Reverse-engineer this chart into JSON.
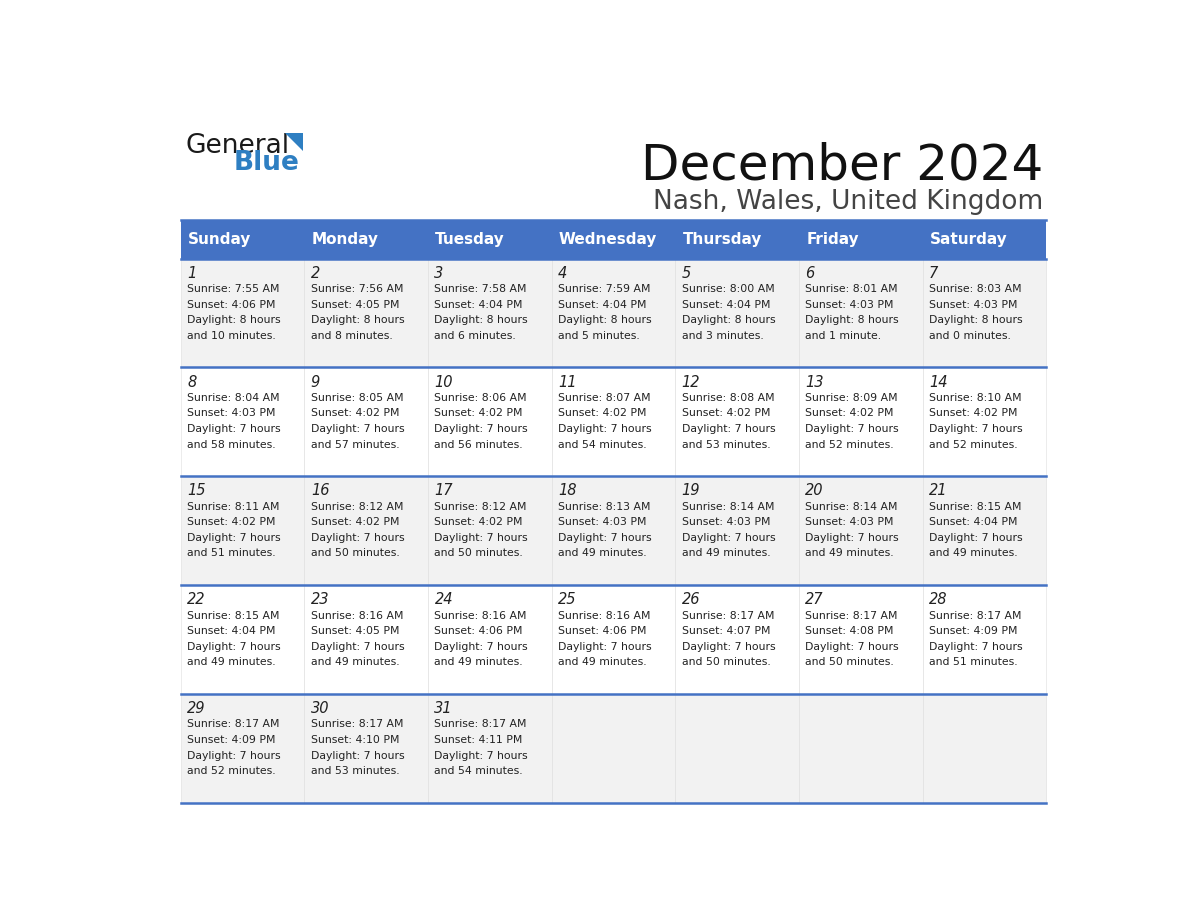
{
  "title": "December 2024",
  "subtitle": "Nash, Wales, United Kingdom",
  "header_color": "#4472C4",
  "header_text_color": "#FFFFFF",
  "cell_bg_even": "#F2F2F2",
  "cell_bg_odd": "#FFFFFF",
  "text_color": "#222222",
  "days_of_week": [
    "Sunday",
    "Monday",
    "Tuesday",
    "Wednesday",
    "Thursday",
    "Friday",
    "Saturday"
  ],
  "weeks": [
    [
      {
        "day": 1,
        "sunrise": "7:55 AM",
        "sunset": "4:06 PM",
        "daylight": "8 hours and 10 minutes."
      },
      {
        "day": 2,
        "sunrise": "7:56 AM",
        "sunset": "4:05 PM",
        "daylight": "8 hours and 8 minutes."
      },
      {
        "day": 3,
        "sunrise": "7:58 AM",
        "sunset": "4:04 PM",
        "daylight": "8 hours and 6 minutes."
      },
      {
        "day": 4,
        "sunrise": "7:59 AM",
        "sunset": "4:04 PM",
        "daylight": "8 hours and 5 minutes."
      },
      {
        "day": 5,
        "sunrise": "8:00 AM",
        "sunset": "4:04 PM",
        "daylight": "8 hours and 3 minutes."
      },
      {
        "day": 6,
        "sunrise": "8:01 AM",
        "sunset": "4:03 PM",
        "daylight": "8 hours and 1 minute."
      },
      {
        "day": 7,
        "sunrise": "8:03 AM",
        "sunset": "4:03 PM",
        "daylight": "8 hours and 0 minutes."
      }
    ],
    [
      {
        "day": 8,
        "sunrise": "8:04 AM",
        "sunset": "4:03 PM",
        "daylight": "7 hours and 58 minutes."
      },
      {
        "day": 9,
        "sunrise": "8:05 AM",
        "sunset": "4:02 PM",
        "daylight": "7 hours and 57 minutes."
      },
      {
        "day": 10,
        "sunrise": "8:06 AM",
        "sunset": "4:02 PM",
        "daylight": "7 hours and 56 minutes."
      },
      {
        "day": 11,
        "sunrise": "8:07 AM",
        "sunset": "4:02 PM",
        "daylight": "7 hours and 54 minutes."
      },
      {
        "day": 12,
        "sunrise": "8:08 AM",
        "sunset": "4:02 PM",
        "daylight": "7 hours and 53 minutes."
      },
      {
        "day": 13,
        "sunrise": "8:09 AM",
        "sunset": "4:02 PM",
        "daylight": "7 hours and 52 minutes."
      },
      {
        "day": 14,
        "sunrise": "8:10 AM",
        "sunset": "4:02 PM",
        "daylight": "7 hours and 52 minutes."
      }
    ],
    [
      {
        "day": 15,
        "sunrise": "8:11 AM",
        "sunset": "4:02 PM",
        "daylight": "7 hours and 51 minutes."
      },
      {
        "day": 16,
        "sunrise": "8:12 AM",
        "sunset": "4:02 PM",
        "daylight": "7 hours and 50 minutes."
      },
      {
        "day": 17,
        "sunrise": "8:12 AM",
        "sunset": "4:02 PM",
        "daylight": "7 hours and 50 minutes."
      },
      {
        "day": 18,
        "sunrise": "8:13 AM",
        "sunset": "4:03 PM",
        "daylight": "7 hours and 49 minutes."
      },
      {
        "day": 19,
        "sunrise": "8:14 AM",
        "sunset": "4:03 PM",
        "daylight": "7 hours and 49 minutes."
      },
      {
        "day": 20,
        "sunrise": "8:14 AM",
        "sunset": "4:03 PM",
        "daylight": "7 hours and 49 minutes."
      },
      {
        "day": 21,
        "sunrise": "8:15 AM",
        "sunset": "4:04 PM",
        "daylight": "7 hours and 49 minutes."
      }
    ],
    [
      {
        "day": 22,
        "sunrise": "8:15 AM",
        "sunset": "4:04 PM",
        "daylight": "7 hours and 49 minutes."
      },
      {
        "day": 23,
        "sunrise": "8:16 AM",
        "sunset": "4:05 PM",
        "daylight": "7 hours and 49 minutes."
      },
      {
        "day": 24,
        "sunrise": "8:16 AM",
        "sunset": "4:06 PM",
        "daylight": "7 hours and 49 minutes."
      },
      {
        "day": 25,
        "sunrise": "8:16 AM",
        "sunset": "4:06 PM",
        "daylight": "7 hours and 49 minutes."
      },
      {
        "day": 26,
        "sunrise": "8:17 AM",
        "sunset": "4:07 PM",
        "daylight": "7 hours and 50 minutes."
      },
      {
        "day": 27,
        "sunrise": "8:17 AM",
        "sunset": "4:08 PM",
        "daylight": "7 hours and 50 minutes."
      },
      {
        "day": 28,
        "sunrise": "8:17 AM",
        "sunset": "4:09 PM",
        "daylight": "7 hours and 51 minutes."
      }
    ],
    [
      {
        "day": 29,
        "sunrise": "8:17 AM",
        "sunset": "4:09 PM",
        "daylight": "7 hours and 52 minutes."
      },
      {
        "day": 30,
        "sunrise": "8:17 AM",
        "sunset": "4:10 PM",
        "daylight": "7 hours and 53 minutes."
      },
      {
        "day": 31,
        "sunrise": "8:17 AM",
        "sunset": "4:11 PM",
        "daylight": "7 hours and 54 minutes."
      },
      null,
      null,
      null,
      null
    ]
  ],
  "logo_general_color": "#1a1a1a",
  "logo_blue_color": "#2E7FC2",
  "figsize": [
    11.88,
    9.18
  ],
  "dpi": 100
}
